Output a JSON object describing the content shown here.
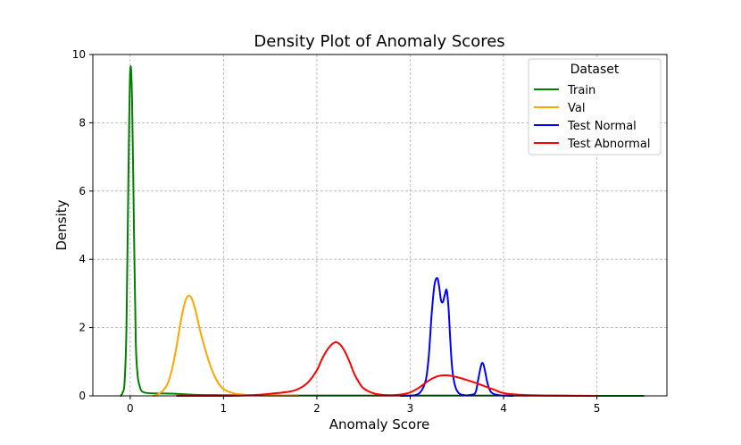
{
  "chart_data": {
    "type": "line",
    "title": "Density Plot of Anomaly Scores",
    "xlabel": "Anomaly Score",
    "ylabel": "Density",
    "xlim": [
      -0.4,
      5.75
    ],
    "ylim": [
      0,
      10
    ],
    "xticks": [
      0,
      1,
      2,
      3,
      4,
      5
    ],
    "yticks": [
      0,
      2,
      4,
      6,
      8,
      10
    ],
    "grid": true,
    "legend": {
      "title": "Dataset",
      "position": "top-right"
    },
    "series": [
      {
        "name": "Train",
        "color": "#008000",
        "x": [
          -0.1,
          -0.08,
          -0.06,
          -0.04,
          -0.02,
          0.0,
          0.02,
          0.04,
          0.06,
          0.08,
          0.1,
          0.12,
          0.15,
          0.2,
          0.3,
          0.5,
          0.7,
          1.0,
          1.5,
          2.0,
          3.0,
          4.0,
          5.0,
          5.5
        ],
        "y": [
          0.0,
          0.1,
          0.4,
          2.0,
          6.2,
          9.5,
          8.7,
          5.0,
          1.6,
          0.6,
          0.3,
          0.15,
          0.1,
          0.08,
          0.07,
          0.06,
          0.03,
          0.02,
          0.01,
          0.01,
          0.01,
          0.01,
          0.0,
          0.0
        ]
      },
      {
        "name": "Val",
        "color": "#ffa500",
        "x": [
          0.25,
          0.3,
          0.35,
          0.4,
          0.45,
          0.5,
          0.55,
          0.6,
          0.65,
          0.7,
          0.75,
          0.8,
          0.85,
          0.9,
          0.95,
          1.0,
          1.1,
          1.2,
          1.3,
          1.5,
          1.8
        ],
        "y": [
          0.0,
          0.05,
          0.15,
          0.35,
          0.8,
          1.5,
          2.3,
          2.85,
          2.9,
          2.5,
          1.9,
          1.4,
          0.95,
          0.6,
          0.35,
          0.2,
          0.08,
          0.04,
          0.02,
          0.01,
          0.0
        ]
      },
      {
        "name": "Test Normal",
        "color": "#0000ff",
        "x": [
          2.9,
          3.05,
          3.12,
          3.17,
          3.2,
          3.23,
          3.26,
          3.29,
          3.31,
          3.33,
          3.35,
          3.37,
          3.39,
          3.41,
          3.43,
          3.45,
          3.48,
          3.52,
          3.58,
          3.65,
          3.7,
          3.73,
          3.76,
          3.78,
          3.8,
          3.83,
          3.87,
          3.95,
          4.1
        ],
        "y": [
          0.0,
          0.02,
          0.15,
          0.5,
          1.2,
          2.4,
          3.25,
          3.45,
          3.2,
          2.8,
          2.75,
          2.95,
          3.1,
          2.6,
          1.6,
          0.8,
          0.3,
          0.08,
          0.02,
          0.03,
          0.1,
          0.5,
          0.9,
          0.95,
          0.75,
          0.35,
          0.1,
          0.02,
          0.0
        ]
      },
      {
        "name": "Test Abnormal",
        "color": "#ff0000",
        "x": [
          0.5,
          1.0,
          1.3,
          1.5,
          1.7,
          1.8,
          1.9,
          2.0,
          2.05,
          2.1,
          2.15,
          2.2,
          2.25,
          2.3,
          2.35,
          2.4,
          2.45,
          2.5,
          2.6,
          2.7,
          2.8,
          2.9,
          3.0,
          3.1,
          3.2,
          3.3,
          3.4,
          3.5,
          3.6,
          3.7,
          3.8,
          3.9,
          4.0,
          4.2,
          4.5,
          5.0
        ],
        "y": [
          0.0,
          0.0,
          0.02,
          0.06,
          0.12,
          0.2,
          0.38,
          0.75,
          1.05,
          1.3,
          1.48,
          1.57,
          1.5,
          1.3,
          1.0,
          0.65,
          0.4,
          0.22,
          0.08,
          0.03,
          0.02,
          0.04,
          0.1,
          0.25,
          0.45,
          0.58,
          0.6,
          0.55,
          0.47,
          0.38,
          0.28,
          0.18,
          0.08,
          0.03,
          0.01,
          0.0
        ]
      }
    ]
  }
}
